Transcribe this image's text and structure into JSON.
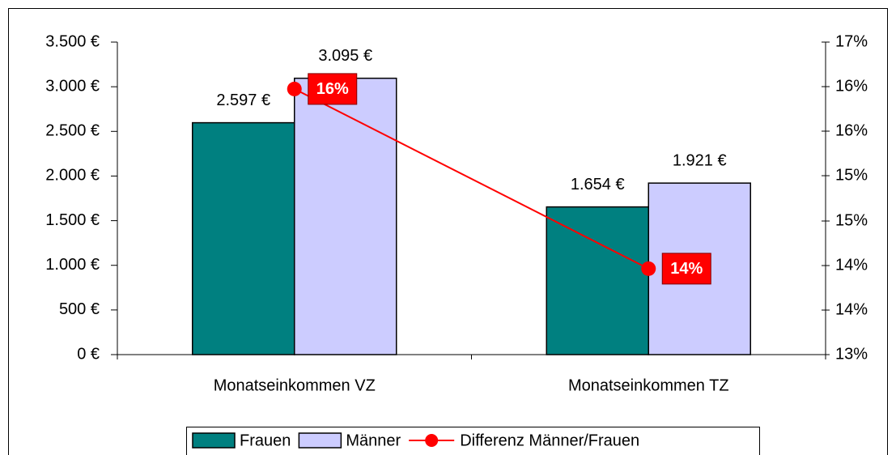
{
  "chart_data": {
    "type": "bar",
    "categories": [
      "Monatseinkommen VZ",
      "Monatseinkommen TZ"
    ],
    "series": [
      {
        "name": "Frauen",
        "color": "#008080",
        "values": [
          2597,
          1654
        ],
        "value_labels": [
          "2.597 €",
          "1.654 €"
        ]
      },
      {
        "name": "Männer",
        "color": "#ccccff",
        "values": [
          3095,
          1921
        ],
        "value_labels": [
          "3.095 €",
          "1.921 €"
        ]
      },
      {
        "name": "Differenz Männer/Frauen",
        "type": "line",
        "axis": "y2",
        "color": "#ff0000",
        "values": [
          16.4,
          14.1
        ],
        "value_labels": [
          "16%",
          "14%"
        ]
      }
    ],
    "ylim": [
      0,
      3500
    ],
    "yticks": [
      {
        "value": 0,
        "label": "0 €"
      },
      {
        "value": 500,
        "label": "500 €"
      },
      {
        "value": 1000,
        "label": "1.000 €"
      },
      {
        "value": 1500,
        "label": "1.500 €"
      },
      {
        "value": 2000,
        "label": "2.000 €"
      },
      {
        "value": 2500,
        "label": "2.500 €"
      },
      {
        "value": 3000,
        "label": "3.000 €"
      },
      {
        "value": 3500,
        "label": "3.500 €"
      }
    ],
    "y2lim": [
      13,
      17
    ],
    "y2ticks": [
      {
        "value": 13,
        "label": "13%"
      },
      {
        "value": 13.57,
        "label": "14%"
      },
      {
        "value": 14.14,
        "label": "14%"
      },
      {
        "value": 14.71,
        "label": "15%"
      },
      {
        "value": 15.29,
        "label": "15%"
      },
      {
        "value": 15.86,
        "label": "16%"
      },
      {
        "value": 16.43,
        "label": "16%"
      },
      {
        "value": 17,
        "label": "17%"
      }
    ],
    "grid": false,
    "legend": "bottom"
  }
}
